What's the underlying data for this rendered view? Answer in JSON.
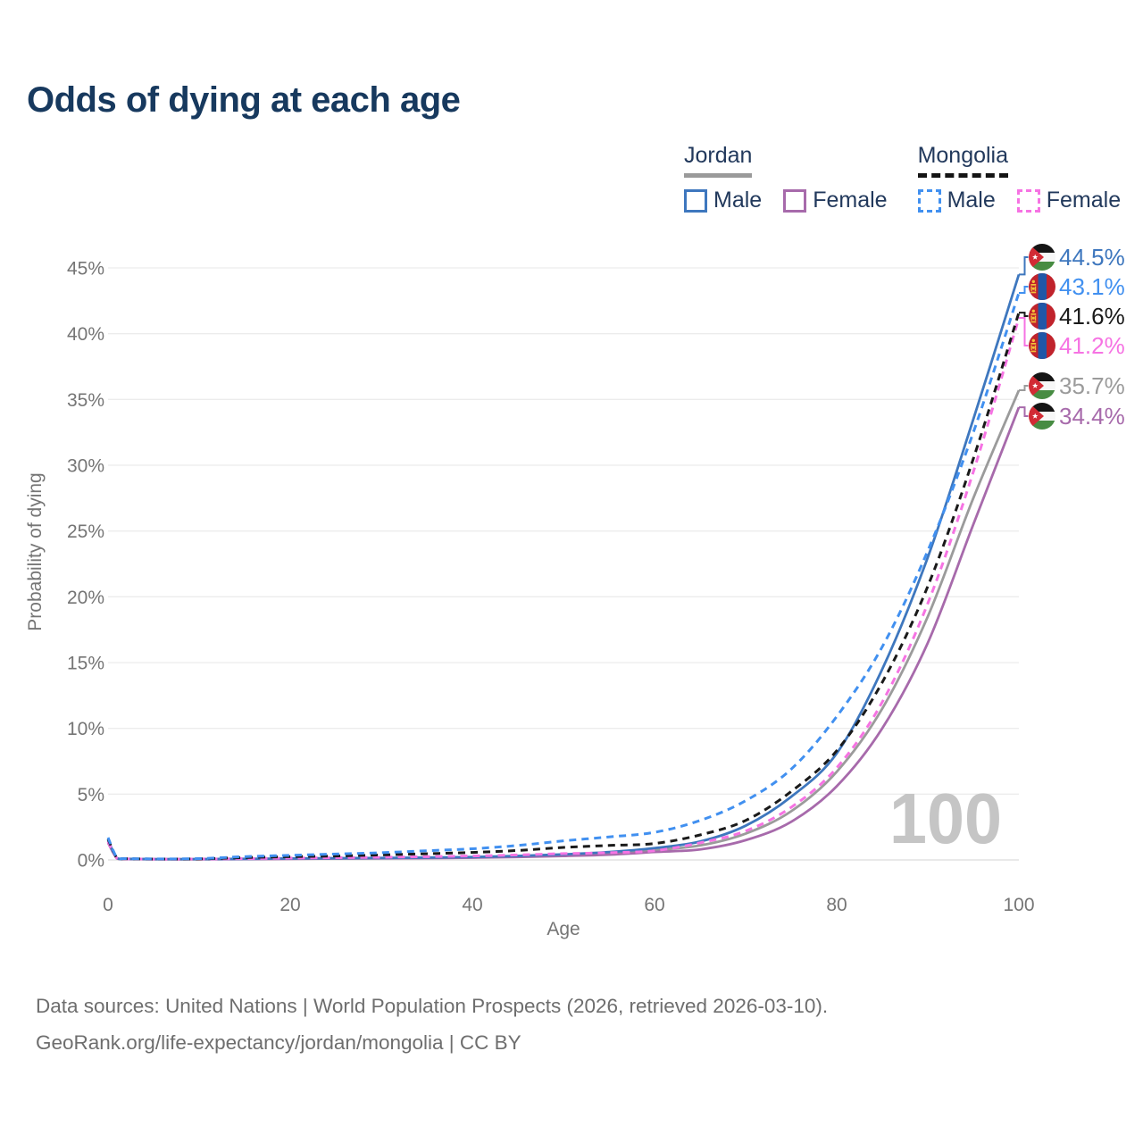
{
  "title": "Odds of dying at each age",
  "legend": {
    "jordan": {
      "title": "Jordan",
      "male": "Male",
      "female": "Female"
    },
    "mongolia": {
      "title": "Mongolia",
      "male": "Male",
      "female": "Female"
    }
  },
  "footer": {
    "line1": "Data sources: United Nations | World Population Prospects (2026, retrieved 2026-03-10).",
    "line2": "GeoRank.org/life-expectancy/jordan/mongolia | CC BY"
  },
  "chart_data": {
    "type": "line",
    "title": "Odds of dying at each age",
    "xlabel": "Age",
    "ylabel": "Probability of dying",
    "watermark": "100",
    "xlim": [
      0,
      100
    ],
    "ylim": [
      0,
      45
    ],
    "grid": "horizontal",
    "legend_position": "top-right",
    "x_ticks": [
      {
        "value": 0,
        "label": "0"
      },
      {
        "value": 20,
        "label": "20"
      },
      {
        "value": 40,
        "label": "40"
      },
      {
        "value": 60,
        "label": "60"
      },
      {
        "value": 80,
        "label": "80"
      },
      {
        "value": 100,
        "label": "100"
      }
    ],
    "y_ticks": [
      {
        "value": 0,
        "label": "0%"
      },
      {
        "value": 5,
        "label": "5%"
      },
      {
        "value": 10,
        "label": "10%"
      },
      {
        "value": 15,
        "label": "15%"
      },
      {
        "value": 20,
        "label": "20%"
      },
      {
        "value": 25,
        "label": "25%"
      },
      {
        "value": 30,
        "label": "30%"
      },
      {
        "value": 35,
        "label": "35%"
      },
      {
        "value": 40,
        "label": "40%"
      },
      {
        "value": 45,
        "label": "45%"
      }
    ],
    "ages": [
      0,
      1,
      2,
      5,
      10,
      15,
      20,
      25,
      30,
      35,
      40,
      45,
      50,
      55,
      60,
      65,
      70,
      75,
      80,
      85,
      90,
      95,
      100
    ],
    "series": [
      {
        "name": "Jordan Both sexes",
        "country": "jordan",
        "sex": "both",
        "style": "solid",
        "color": "#9b9b9b",
        "values": [
          1.4,
          0.11,
          0.07,
          0.05,
          0.05,
          0.07,
          0.1,
          0.12,
          0.13,
          0.16,
          0.19,
          0.26,
          0.37,
          0.5,
          0.75,
          1.1,
          2.0,
          3.7,
          6.7,
          11.5,
          18.5,
          27.5,
          35.7
        ]
      },
      {
        "name": "Jordan Female",
        "country": "jordan",
        "sex": "female",
        "style": "solid",
        "color": "#a76aab",
        "values": [
          1.3,
          0.1,
          0.06,
          0.05,
          0.05,
          0.06,
          0.08,
          0.1,
          0.12,
          0.14,
          0.17,
          0.22,
          0.3,
          0.4,
          0.6,
          0.8,
          1.5,
          2.9,
          5.6,
          10.0,
          16.5,
          25.5,
          34.4
        ]
      },
      {
        "name": "Jordan Male",
        "country": "jordan",
        "sex": "male",
        "style": "solid",
        "color": "#3e77be",
        "values": [
          1.5,
          0.12,
          0.08,
          0.06,
          0.06,
          0.08,
          0.11,
          0.13,
          0.15,
          0.18,
          0.22,
          0.3,
          0.42,
          0.6,
          0.9,
          1.4,
          2.6,
          4.8,
          8.1,
          14.5,
          23.0,
          33.5,
          44.5
        ]
      },
      {
        "name": "Mongolia Female",
        "country": "mongolia",
        "sex": "female",
        "style": "dashed",
        "color": "#f673e3",
        "values": [
          1.4,
          0.11,
          0.08,
          0.06,
          0.07,
          0.1,
          0.14,
          0.17,
          0.2,
          0.25,
          0.3,
          0.38,
          0.48,
          0.55,
          0.7,
          1.3,
          2.2,
          4.0,
          7.0,
          12.0,
          19.5,
          29.5,
          41.2
        ]
      },
      {
        "name": "Mongolia Both sexes",
        "country": "mongolia",
        "sex": "both",
        "style": "dashed",
        "color": "#1a1a1a",
        "values": [
          1.6,
          0.13,
          0.09,
          0.07,
          0.08,
          0.18,
          0.25,
          0.3,
          0.38,
          0.47,
          0.57,
          0.72,
          0.95,
          1.1,
          1.25,
          1.9,
          3.0,
          5.2,
          8.3,
          13.5,
          20.8,
          30.5,
          41.6
        ]
      },
      {
        "name": "Mongolia Male",
        "country": "mongolia",
        "sex": "male",
        "style": "dashed",
        "color": "#4190f0",
        "values": [
          1.7,
          0.15,
          0.1,
          0.08,
          0.1,
          0.25,
          0.35,
          0.45,
          0.55,
          0.7,
          0.85,
          1.1,
          1.45,
          1.75,
          2.1,
          3.0,
          4.5,
          6.9,
          10.9,
          16.2,
          23.5,
          32.5,
          43.1
        ]
      }
    ],
    "end_labels": [
      {
        "text": "44.5%",
        "value": 44.5,
        "flag": "jordan",
        "series": "Jordan Male",
        "color": "#3e77be"
      },
      {
        "text": "43.1%",
        "value": 43.1,
        "flag": "mongolia",
        "series": "Mongolia Male",
        "color": "#4190f0"
      },
      {
        "text": "41.6%",
        "value": 41.6,
        "flag": "mongolia",
        "series": "Mongolia Both sexes",
        "color": "#1a1a1a"
      },
      {
        "text": "41.2%",
        "value": 41.2,
        "flag": "mongolia",
        "series": "Mongolia Female",
        "color": "#f673e3"
      },
      {
        "text": "35.7%",
        "value": 35.7,
        "flag": "jordan",
        "series": "Jordan Both sexes",
        "color": "#9b9b9b"
      },
      {
        "text": "34.4%",
        "value": 34.4,
        "flag": "jordan",
        "series": "Jordan Female",
        "color": "#a76aab"
      }
    ]
  }
}
